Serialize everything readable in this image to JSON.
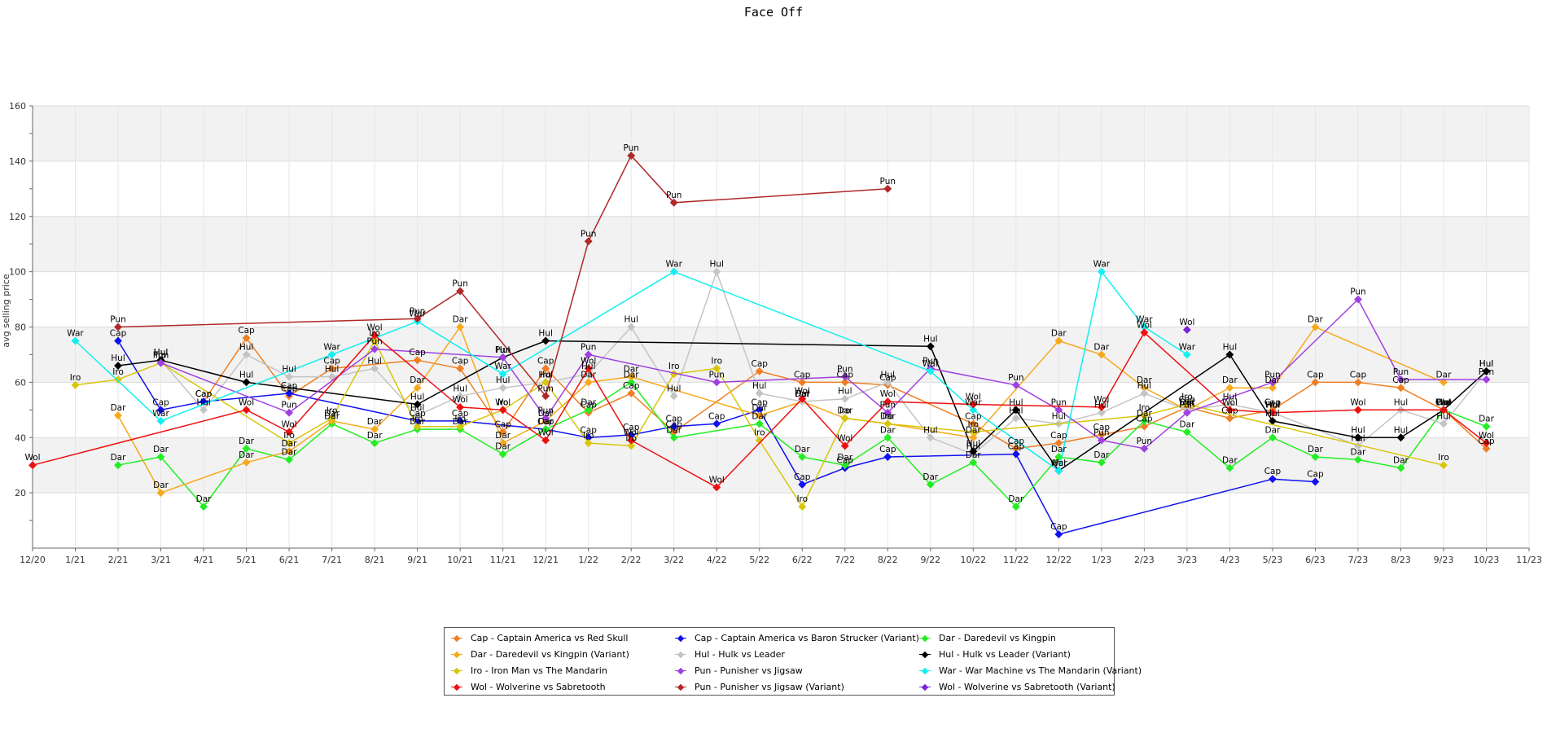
{
  "chart_data": {
    "type": "line",
    "title": "Face Off",
    "ylabel": "avg selling price",
    "xlabel": "",
    "ylim": [
      0,
      160
    ],
    "yticks": [
      20,
      40,
      60,
      80,
      100,
      120,
      140,
      160
    ],
    "grid": true,
    "legend_position": "bottom",
    "categories": [
      "12/20",
      "1/21",
      "2/21",
      "3/21",
      "4/21",
      "5/21",
      "6/21",
      "7/21",
      "8/21",
      "9/21",
      "10/21",
      "11/21",
      "12/21",
      "1/22",
      "2/22",
      "3/22",
      "4/22",
      "5/22",
      "6/22",
      "7/22",
      "8/22",
      "9/22",
      "10/22",
      "11/22",
      "12/22",
      "1/23",
      "2/23",
      "3/23",
      "4/23",
      "5/23",
      "6/23",
      "7/23",
      "8/23",
      "9/23",
      "10/23",
      "11/23"
    ],
    "series": [
      {
        "name": "Cap - Captain America vs Red Skull",
        "tag": "Cap",
        "color": "#ef7f22",
        "points": [
          [
            "4/21",
            53
          ],
          [
            "5/21",
            76
          ],
          [
            "6/21",
            55
          ],
          [
            "7/21",
            65
          ],
          [
            "9/21",
            68
          ],
          [
            "10/21",
            65
          ],
          [
            "11/21",
            42
          ],
          [
            "12/21",
            65
          ],
          [
            "1/22",
            49
          ],
          [
            "2/22",
            56
          ],
          [
            "3/22",
            42
          ],
          [
            "5/22",
            64
          ],
          [
            "6/22",
            60
          ],
          [
            "7/22",
            60
          ],
          [
            "8/22",
            59
          ],
          [
            "10/22",
            45
          ],
          [
            "11/22",
            36
          ],
          [
            "12/22",
            38
          ],
          [
            "1/23",
            41
          ],
          [
            "2/23",
            44
          ],
          [
            "3/23",
            51
          ],
          [
            "4/23",
            47
          ],
          [
            "5/23",
            50
          ],
          [
            "6/23",
            60
          ],
          [
            "7/23",
            60
          ],
          [
            "8/23",
            58
          ],
          [
            "9/23",
            50
          ],
          [
            "10/23",
            36
          ]
        ]
      },
      {
        "name": "Cap - Captain America vs Baron Strucker (Variant)",
        "tag": "Cap",
        "color": "#1010f0",
        "points": [
          [
            "2/21",
            75
          ],
          [
            "3/21",
            50
          ],
          [
            "4/21",
            53
          ],
          [
            "6/21",
            56
          ],
          [
            "9/21",
            46
          ],
          [
            "10/21",
            46
          ],
          [
            "12/21",
            43
          ],
          [
            "1/22",
            40
          ],
          [
            "2/22",
            41
          ],
          [
            "3/22",
            44
          ],
          [
            "4/22",
            45
          ],
          [
            "5/22",
            50
          ],
          [
            "6/22",
            23
          ],
          [
            "7/22",
            29
          ],
          [
            "8/22",
            33
          ],
          [
            "11/22",
            34
          ],
          [
            "12/22",
            5
          ],
          [
            "5/23",
            25
          ],
          [
            "6/23",
            24
          ]
        ]
      },
      {
        "name": "Dar - Daredevil vs Kingpin",
        "tag": "Dar",
        "color": "#22ee22",
        "points": [
          [
            "2/21",
            30
          ],
          [
            "3/21",
            33
          ],
          [
            "4/21",
            15
          ],
          [
            "5/21",
            36
          ],
          [
            "6/21",
            32
          ],
          [
            "7/21",
            45
          ],
          [
            "8/21",
            38
          ],
          [
            "9/21",
            43
          ],
          [
            "10/21",
            43
          ],
          [
            "11/21",
            34
          ],
          [
            "12/21",
            43
          ],
          [
            "1/22",
            50
          ],
          [
            "2/22",
            60
          ],
          [
            "3/22",
            40
          ],
          [
            "5/22",
            45
          ],
          [
            "6/22",
            33
          ],
          [
            "7/22",
            30
          ],
          [
            "8/22",
            40
          ],
          [
            "9/22",
            23
          ],
          [
            "10/22",
            31
          ],
          [
            "11/22",
            15
          ],
          [
            "12/22",
            33
          ],
          [
            "1/23",
            31
          ],
          [
            "2/23",
            46
          ],
          [
            "3/23",
            42
          ],
          [
            "4/23",
            29
          ],
          [
            "5/23",
            40
          ],
          [
            "6/23",
            33
          ],
          [
            "7/23",
            32
          ],
          [
            "8/23",
            29
          ],
          [
            "9/23",
            50
          ],
          [
            "10/23",
            44
          ]
        ]
      },
      {
        "name": "Dar - Daredevil vs Kingpin (Variant)",
        "tag": "Dar",
        "color": "#f6a91d",
        "points": [
          [
            "2/21",
            48
          ],
          [
            "3/21",
            20
          ],
          [
            "5/21",
            31
          ],
          [
            "6/21",
            35
          ],
          [
            "7/21",
            46
          ],
          [
            "8/21",
            43
          ],
          [
            "9/21",
            58
          ],
          [
            "10/21",
            80
          ],
          [
            "11/21",
            38
          ],
          [
            "12/21",
            46
          ],
          [
            "1/22",
            60
          ],
          [
            "2/22",
            62
          ],
          [
            "5/22",
            48
          ],
          [
            "6/22",
            53
          ],
          [
            "7/22",
            47
          ],
          [
            "8/22",
            45
          ],
          [
            "10/22",
            40
          ],
          [
            "12/22",
            75
          ],
          [
            "1/23",
            70
          ],
          [
            "2/23",
            58
          ],
          [
            "3/23",
            50
          ],
          [
            "4/23",
            58
          ],
          [
            "5/23",
            58
          ],
          [
            "6/23",
            80
          ],
          [
            "9/23",
            60
          ]
        ]
      },
      {
        "name": "Hul - Hulk vs Leader",
        "tag": "Hul",
        "color": "#c4c4c4",
        "points": [
          [
            "3/21",
            68
          ],
          [
            "4/21",
            50
          ],
          [
            "5/21",
            70
          ],
          [
            "6/21",
            62
          ],
          [
            "7/21",
            62
          ],
          [
            "8/21",
            65
          ],
          [
            "9/21",
            48
          ],
          [
            "10/21",
            55
          ],
          [
            "11/21",
            58
          ],
          [
            "12/21",
            60
          ],
          [
            "1/22",
            63
          ],
          [
            "2/22",
            80
          ],
          [
            "3/22",
            55
          ],
          [
            "4/22",
            100
          ],
          [
            "5/22",
            56
          ],
          [
            "6/22",
            53
          ],
          [
            "7/22",
            54
          ],
          [
            "8/22",
            60
          ],
          [
            "9/22",
            40
          ],
          [
            "10/22",
            34
          ],
          [
            "11/22",
            47
          ],
          [
            "12/22",
            45
          ],
          [
            "1/23",
            49
          ],
          [
            "2/23",
            56
          ],
          [
            "3/23",
            50
          ],
          [
            "4/23",
            52
          ],
          [
            "5/23",
            49
          ],
          [
            "7/23",
            37
          ],
          [
            "8/23",
            50
          ],
          [
            "9/23",
            45
          ],
          [
            "10/23",
            64
          ]
        ]
      },
      {
        "name": "Hul - Hulk vs Leader (Variant)",
        "tag": "Hul",
        "color": "#000000",
        "points": [
          [
            "2/21",
            66
          ],
          [
            "3/21",
            68
          ],
          [
            "5/21",
            60
          ],
          [
            "9/21",
            52
          ],
          [
            "11/21",
            69
          ],
          [
            "12/21",
            75
          ],
          [
            "9/22",
            73
          ],
          [
            "10/22",
            35
          ],
          [
            "11/22",
            50
          ],
          [
            "12/22",
            28
          ],
          [
            "4/23",
            70
          ],
          [
            "5/23",
            46
          ],
          [
            "7/23",
            40
          ],
          [
            "8/23",
            40
          ],
          [
            "9/23",
            50
          ],
          [
            "10/23",
            64
          ]
        ]
      },
      {
        "name": "Iro - Iron Man vs The Mandarin",
        "tag": "Iro",
        "color": "#d8c60c",
        "points": [
          [
            "1/21",
            59
          ],
          [
            "2/21",
            61
          ],
          [
            "3/21",
            67
          ],
          [
            "6/21",
            38
          ],
          [
            "7/21",
            47
          ],
          [
            "8/21",
            75
          ],
          [
            "9/21",
            44
          ],
          [
            "10/21",
            44
          ],
          [
            "11/21",
            50
          ],
          [
            "12/21",
            60
          ],
          [
            "1/22",
            38
          ],
          [
            "2/22",
            37
          ],
          [
            "3/22",
            63
          ],
          [
            "4/22",
            65
          ],
          [
            "5/22",
            39
          ],
          [
            "6/22",
            15
          ],
          [
            "7/22",
            47
          ],
          [
            "8/22",
            45
          ],
          [
            "10/22",
            42
          ],
          [
            "2/23",
            48
          ],
          [
            "3/23",
            52
          ],
          [
            "9/23",
            30
          ]
        ]
      },
      {
        "name": "Pun - Punisher vs Jigsaw",
        "tag": "Pun",
        "color": "#a040e0",
        "points": [
          [
            "3/21",
            67
          ],
          [
            "6/21",
            49
          ],
          [
            "8/21",
            72
          ],
          [
            "11/21",
            69
          ],
          [
            "12/21",
            47
          ],
          [
            "1/22",
            70
          ],
          [
            "4/22",
            60
          ],
          [
            "7/22",
            62
          ],
          [
            "8/22",
            49
          ],
          [
            "9/22",
            65
          ],
          [
            "11/22",
            59
          ],
          [
            "12/22",
            50
          ],
          [
            "1/23",
            39
          ],
          [
            "2/23",
            36
          ],
          [
            "3/23",
            49
          ],
          [
            "5/23",
            60
          ],
          [
            "7/23",
            90
          ],
          [
            "8/23",
            61
          ],
          [
            "10/23",
            61
          ]
        ]
      },
      {
        "name": "War - War Machine vs The Mandarin (Variant)",
        "tag": "War",
        "color": "#10f0f0",
        "points": [
          [
            "1/21",
            75
          ],
          [
            "3/21",
            46
          ],
          [
            "7/21",
            70
          ],
          [
            "9/21",
            82
          ],
          [
            "11/21",
            63
          ],
          [
            "3/22",
            100
          ],
          [
            "9/22",
            64
          ],
          [
            "10/22",
            50
          ],
          [
            "12/22",
            28
          ],
          [
            "1/23",
            100
          ],
          [
            "2/23",
            80
          ],
          [
            "3/23",
            70
          ]
        ]
      },
      {
        "name": "Wol - Wolverine vs Sabretooth",
        "tag": "Wol",
        "color": "#ee1010",
        "points": [
          [
            "12/20",
            30
          ],
          [
            "5/21",
            50
          ],
          [
            "6/21",
            42
          ],
          [
            "8/21",
            77
          ],
          [
            "10/21",
            51
          ],
          [
            "11/21",
            50
          ],
          [
            "12/21",
            39
          ],
          [
            "1/22",
            65
          ],
          [
            "2/22",
            39
          ],
          [
            "4/22",
            22
          ],
          [
            "6/22",
            54
          ],
          [
            "7/22",
            37
          ],
          [
            "8/22",
            53
          ],
          [
            "10/22",
            52
          ],
          [
            "1/23",
            51
          ],
          [
            "2/23",
            78
          ],
          [
            "4/23",
            50
          ],
          [
            "5/23",
            49
          ],
          [
            "7/23",
            50
          ],
          [
            "9/23",
            50
          ],
          [
            "10/23",
            38
          ]
        ]
      },
      {
        "name": "Pun - Punisher vs Jigsaw (Variant)",
        "tag": "Pun",
        "color": "#b02828",
        "points": [
          [
            "2/21",
            80
          ],
          [
            "9/21",
            83
          ],
          [
            "10/21",
            93
          ],
          [
            "12/21",
            55
          ],
          [
            "1/22",
            111
          ],
          [
            "2/22",
            142
          ],
          [
            "3/22",
            125
          ],
          [
            "8/22",
            130
          ]
        ]
      },
      {
        "name": "Wol - Wolverine vs Sabretooth (Variant)",
        "tag": "Wol",
        "color": "#7a22d8",
        "points": [
          [
            "3/23",
            79
          ]
        ]
      }
    ]
  }
}
